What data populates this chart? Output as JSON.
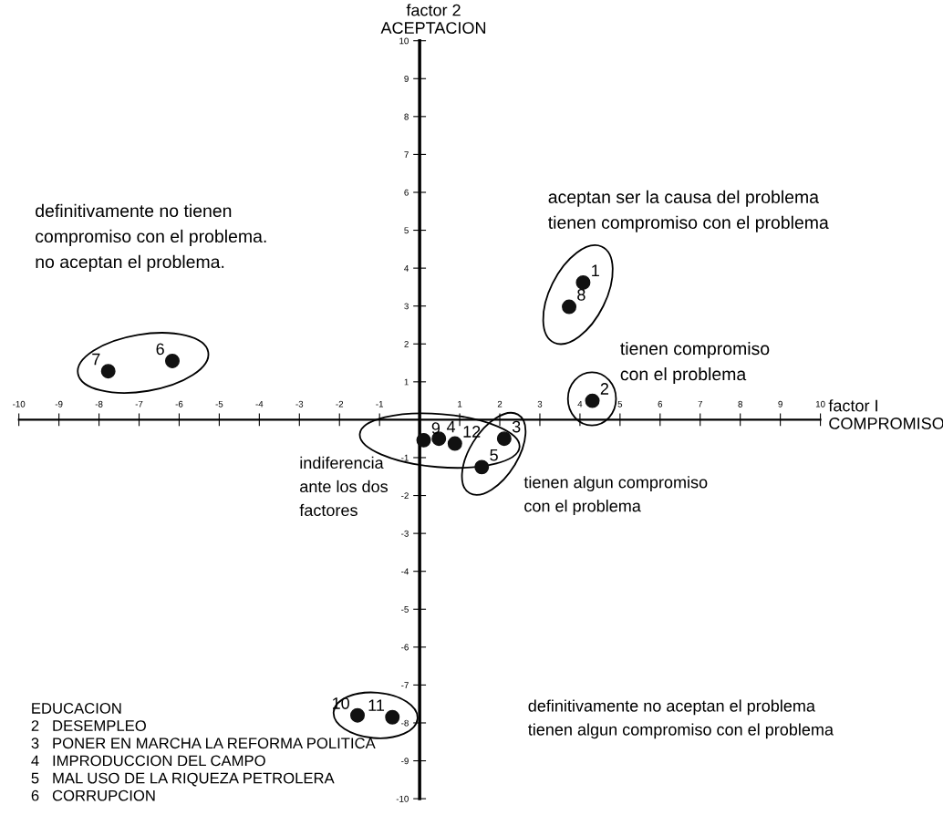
{
  "chart_data": {
    "type": "scatter",
    "xlabel": "factor I\nCOMPROMISO",
    "ylabel": "factor 2\nACEPTACION",
    "x": [
      4.08,
      4.31,
      2.11,
      0.48,
      1.55,
      -6.17,
      -7.77,
      3.73,
      0.1,
      -1.55,
      -0.68,
      0.88
    ],
    "series": [
      {
        "color": "#111111",
        "values": [
          3.62,
          0.5,
          -0.5,
          -0.5,
          -1.25,
          1.55,
          1.28,
          2.98,
          -0.54,
          -7.8,
          -7.85,
          -0.63
        ]
      }
    ],
    "marker": "circle",
    "grid": false,
    "legend": false,
    "xlim": [
      -10,
      10
    ],
    "ylim": [
      -10,
      10
    ],
    "xticks": [
      -10,
      -9,
      -8,
      -7,
      -6,
      -5,
      -4,
      -3,
      -2,
      -1,
      1,
      2,
      3,
      4,
      5,
      6,
      7,
      8,
      9,
      10
    ],
    "yticks": [
      -10,
      -9,
      -8,
      -7,
      -6,
      -5,
      -4,
      -3,
      -2,
      -1,
      1,
      2,
      3,
      4,
      5,
      6,
      7,
      8,
      9,
      10
    ],
    "annotations": [
      "aceptan ser la causa del problema\ntienen compromiso con el problema",
      "definitivamente no tienen\ncompromiso con el problema.\nno aceptan el problema.",
      "tienen compromiso\ncon el problema",
      "indiferencia\nante los dos\nfactores",
      "tienen algun compromiso\ncon el problema",
      "definitivamente no aceptan el problema\ntienen algun compromiso con el problema",
      "EDUCACION\n2   DESEMPLEO\n3   PONER EN MARCHA LA REFORMA POLITICA\n4   IMPRODUCCION DEL CAMPO\n5   MAL USO DE LA RIQUEZA PETROLERA\n6   CORRUPCION",
      {
        "text": "1",
        "x": 4.08,
        "y": 3.62
      },
      {
        "text": "2",
        "x": 4.31,
        "y": 0.5
      },
      {
        "text": "3",
        "x": 2.11,
        "y": -0.5
      },
      {
        "text": "4",
        "x": 0.48,
        "y": -0.5
      },
      {
        "text": "5",
        "x": 1.55,
        "y": -1.25
      },
      {
        "text": "6",
        "x": -6.17,
        "y": 1.55
      },
      {
        "text": "7",
        "x": -7.77,
        "y": 1.28
      },
      {
        "text": "8",
        "x": 3.73,
        "y": 2.98
      },
      {
        "text": "9",
        "x": 0.1,
        "y": -0.54
      },
      {
        "text": "10",
        "x": -1.55,
        "y": -7.8
      },
      {
        "text": "11",
        "x": -0.68,
        "y": -7.85
      },
      {
        "text": "12",
        "x": 0.88,
        "y": -0.63
      }
    ]
  }
}
